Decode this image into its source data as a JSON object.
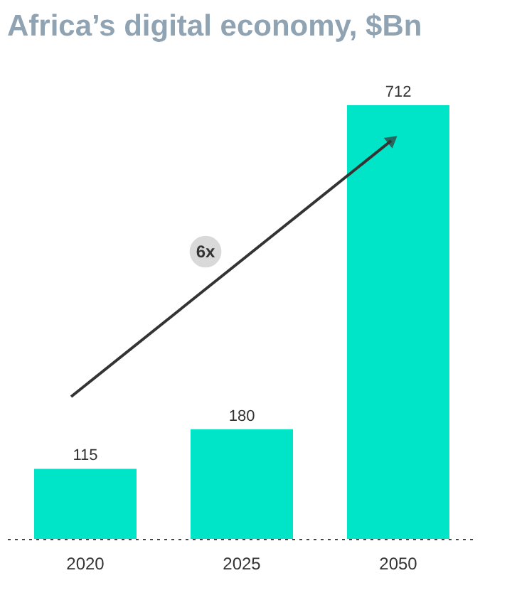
{
  "chart_data": {
    "type": "bar",
    "title": "Africa’s digital economy, $Bn",
    "categories": [
      "2020",
      "2025",
      "2050"
    ],
    "values": [
      115,
      180,
      712
    ],
    "color": "#00e5c8",
    "data_labels": true,
    "annotations": [
      "6x"
    ],
    "grid": false,
    "tick_labels": "x"
  }
}
